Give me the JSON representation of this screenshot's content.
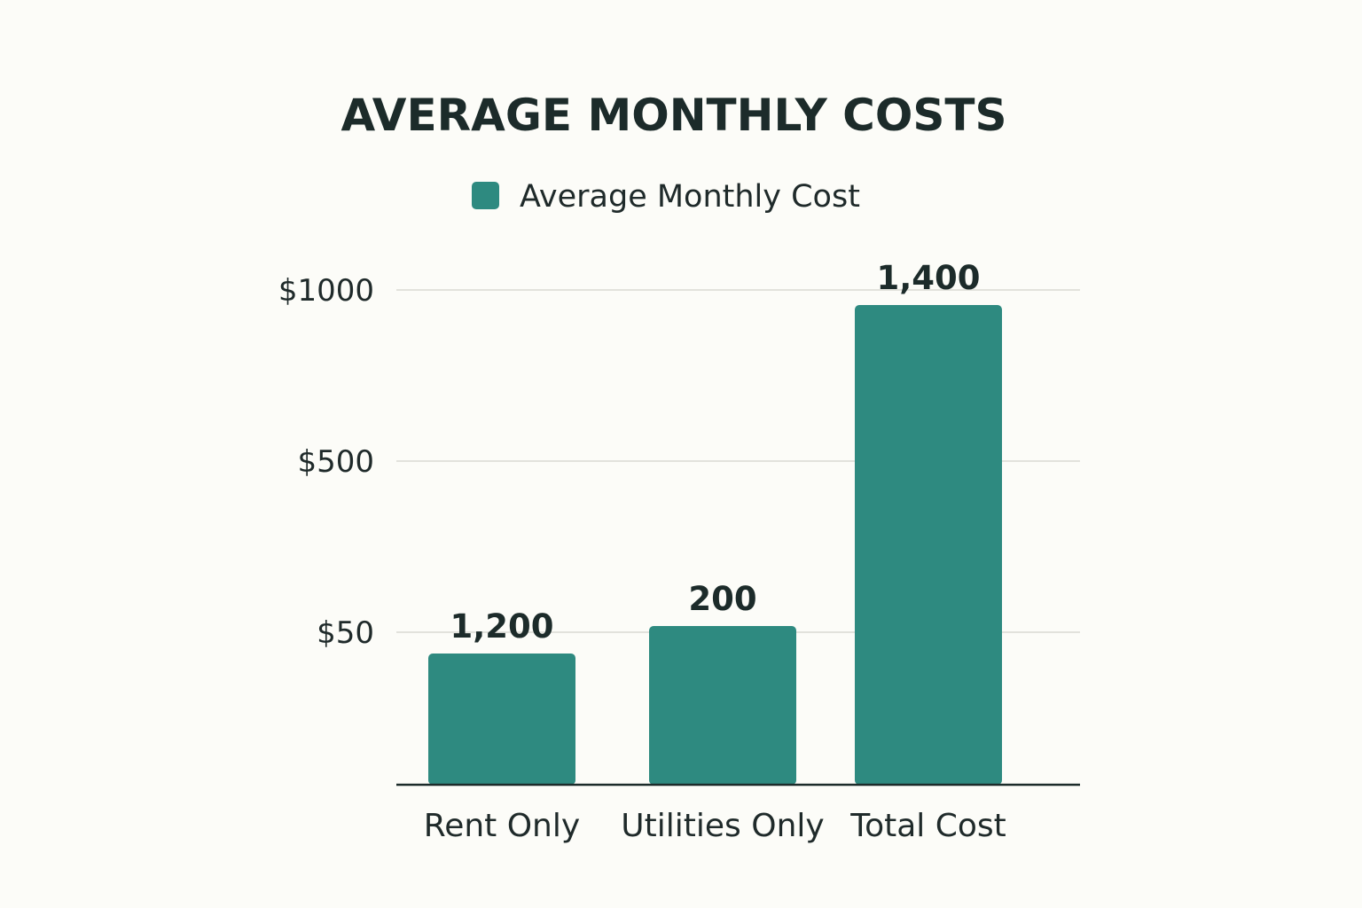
{
  "chart_data": {
    "type": "bar",
    "title": "AVERAGE MONTHLY COSTS",
    "legend": {
      "label": "Average Monthly Cost",
      "placement": "top-center"
    },
    "categories": [
      "Rent Only",
      "Utilities Only",
      "Total Cost"
    ],
    "series": [
      {
        "name": "Average Monthly Cost",
        "values": [
          1200,
          200,
          1400
        ],
        "data_labels": [
          "1,200",
          "200",
          "1,400"
        ],
        "color": "#2e8a80"
      }
    ],
    "y_ticks": [
      "$50",
      "$500",
      "$1000"
    ],
    "grid": true,
    "xlabel": "",
    "ylabel": ""
  }
}
